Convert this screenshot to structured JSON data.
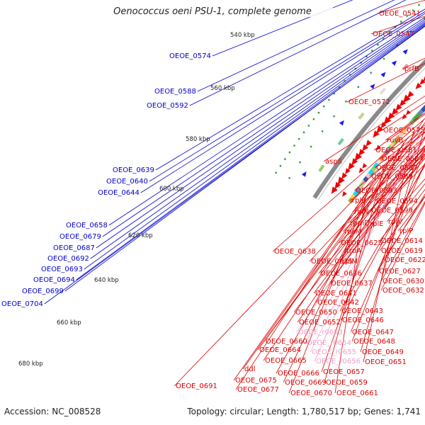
{
  "title": "Oenococcus oeni PSU-1, complete genome",
  "footer": {
    "accession": "Accession: NC_008528",
    "stats": "Topology: circular; Length: 1,780,517 bp; Genes: 1,741"
  },
  "colors": {
    "blue_labels": "#0000cc",
    "red_labels": "#dd0000",
    "pink_labels": "#f0a0c8",
    "backbone": "#8a8a8a",
    "cds_arrows": "#ee0000",
    "rev_arrows": "#1a1aee",
    "tick_dots": "#339933"
  },
  "scale_labels": [
    "540 kbp",
    "560 kbp",
    "580 kbp",
    "600 kbp",
    "620 kbp",
    "640 kbp",
    "660 kbp",
    "680 kbp"
  ],
  "labels_left": [
    "OEOE_0574",
    "OEOE_0588",
    "OEOE_0592",
    "OEOE_0639",
    "OEOE_0640",
    "OEOE_0644",
    "OEOE_0658",
    "OEOE_0679",
    "OEOE_0687",
    "OEOE_0692",
    "OEOE_0693",
    "OEOE_0694",
    "OEOE_0699",
    "OEOE_0704"
  ],
  "labels_right": [
    "OEOE_0541",
    "OEOE_0547",
    "prfB",
    "OEOE_0572",
    "OEOE_0575",
    "ruvB",
    "OEOE_0581",
    "OEOE_0584",
    "OEOE_0587",
    "aspS",
    "OEOE_0589",
    "OEOE_0593",
    "rplB",
    "OEOE_0594",
    "rplN",
    "OEOE_0599",
    "rplV",
    "rplE",
    "rpmD",
    "rplP",
    "rpsM",
    "OEOE_0614",
    "OEOE_0625",
    "OEOE_0619",
    "truA",
    "OEOE_0638",
    "OEOE_0622",
    "rplM",
    "OEOE_0635",
    "OEOE_0627",
    "OEOE_0636",
    "OEOE_0630",
    "OEOE_0637",
    "OEOE_0632",
    "OEOE_0641",
    "OEOE_0642",
    "OEOE_0643",
    "OEOE_0650",
    "OEOE_0646",
    "OEOE_0652",
    "OEOE_r0653",
    "OEOE_0647",
    "OEOE_0660",
    "OEOE_r0654",
    "OEOE_0648",
    "OEOE_0664",
    "OEOE_r0655",
    "OEOE_0649",
    "OEOE_0665",
    "OEOE_r0656",
    "OEOE_0651",
    "ddl",
    "OEOE_0666",
    "OEOE_0657",
    "OEOE_0675",
    "OEOE_0669",
    "OEOE_0659",
    "OEOE_0691",
    "OEOE_0677",
    "OEOE_0670",
    "OEOE_0661"
  ],
  "pink_label_names": [
    "OEOE_r0653",
    "OEOE_r0654",
    "OEOE_r0655",
    "OEOE_r0656"
  ]
}
